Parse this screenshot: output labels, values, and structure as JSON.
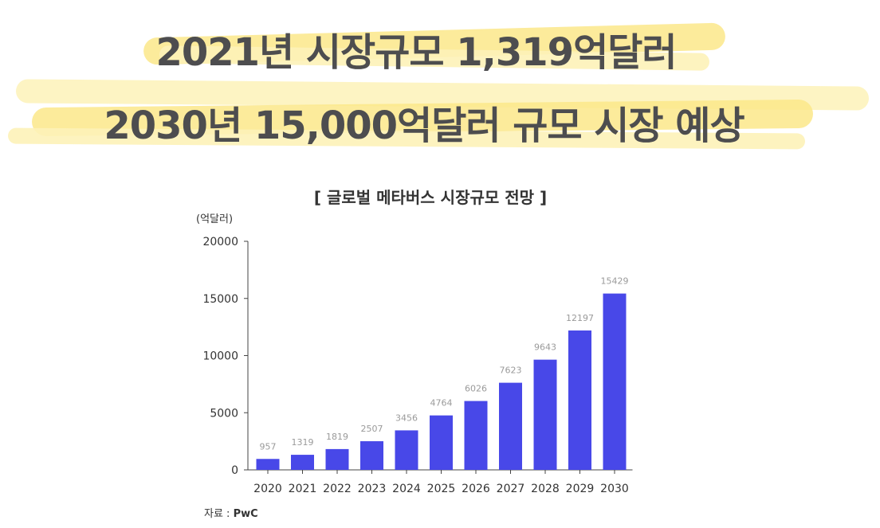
{
  "headline": {
    "line1": "2021년 시장규모 1,319억달러",
    "line2": "2030년 15,000억달러 규모 시장 예상"
  },
  "colors": {
    "highlight": "#fbe88a",
    "highlight_light": "#fdf2b8",
    "bar": "#4848e8",
    "headline_text": "#4d4d4f",
    "value_label": "#9a9a9a"
  },
  "chart_data": {
    "type": "bar",
    "title": "[ 글로벌 메타버스 시장규모 전망 ]",
    "ylabel": "(억달러)",
    "xlabel": "",
    "categories": [
      "2020",
      "2021",
      "2022",
      "2023",
      "2024",
      "2025",
      "2026",
      "2027",
      "2028",
      "2029",
      "2030"
    ],
    "values": [
      957,
      1319,
      1819,
      2507,
      3456,
      4764,
      6026,
      7623,
      9643,
      12197,
      15429
    ],
    "ylim": [
      0,
      20000
    ],
    "yticks": [
      0,
      5000,
      10000,
      15000,
      20000
    ],
    "grid": false,
    "legend": "none"
  },
  "source": {
    "label": "자료 : ",
    "value": "PwC"
  }
}
